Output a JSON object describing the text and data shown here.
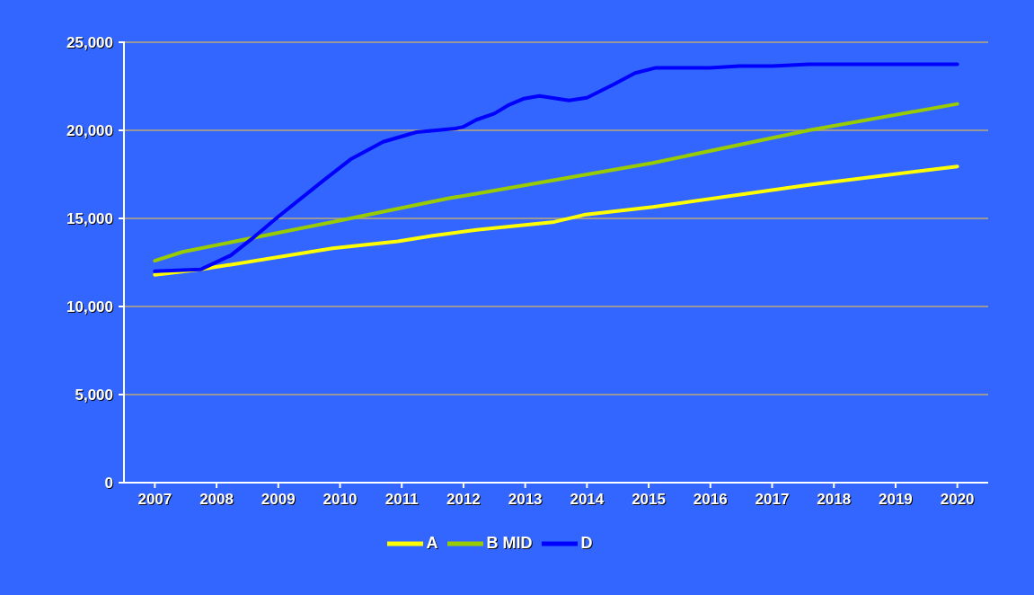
{
  "chart_data": {
    "type": "line",
    "xlim": [
      2006.5,
      2020.5
    ],
    "xticks": [
      2007,
      2008,
      2009,
      2010,
      2011,
      2012,
      2013,
      2014,
      2015,
      2016,
      2017,
      2018,
      2019,
      2020
    ],
    "ylim": [
      0,
      25000
    ],
    "yticks": [
      {
        "value": 0,
        "label": "0"
      },
      {
        "value": 5000,
        "label": "5,000"
      },
      {
        "value": 10000,
        "label": "10,000"
      },
      {
        "value": 15000,
        "label": "15,000"
      },
      {
        "value": 20000,
        "label": "20,000"
      },
      {
        "value": 25000,
        "label": "25,000"
      }
    ],
    "grid": "y",
    "legend": "bottom",
    "marker": "none",
    "line_style": "solid",
    "series": [
      {
        "name": "A",
        "color": "#ffff00",
        "x": [
          2007,
          2007.74,
          2009.88,
          2010.94,
          2011.48,
          2012.21,
          2013.47,
          2013.95,
          2015.07,
          2017.59,
          2020
        ],
        "values": [
          11800,
          12100,
          13300,
          13700,
          14000,
          14350,
          14800,
          15200,
          15650,
          16900,
          17950
        ]
      },
      {
        "name": "B MID",
        "color": "#99cc00",
        "x": [
          2007,
          2007.45,
          2009.88,
          2011.77,
          2012.21,
          2015.07,
          2017.59,
          2020
        ],
        "values": [
          12600,
          13100,
          14800,
          16150,
          16400,
          18150,
          20000,
          21500
        ]
      },
      {
        "name": "D",
        "color": "#0000ff",
        "x": [
          2007,
          2007.74,
          2008.23,
          2008.61,
          2009,
          2009.73,
          2010.17,
          2010.7,
          2011.24,
          2011.87,
          2012,
          2012.21,
          2012.5,
          2012.74,
          2012.98,
          2013.23,
          2013.71,
          2014,
          2014.43,
          2014.78,
          2015.12,
          2015.99,
          2016.47,
          2017.01,
          2017.59,
          2020
        ],
        "values": [
          12000,
          12100,
          12900,
          13950,
          15100,
          17150,
          18350,
          19350,
          19900,
          20100,
          20200,
          20600,
          20950,
          21450,
          21800,
          21950,
          21700,
          21850,
          22600,
          23250,
          23550,
          23550,
          23650,
          23650,
          23750,
          23750
        ]
      }
    ]
  }
}
